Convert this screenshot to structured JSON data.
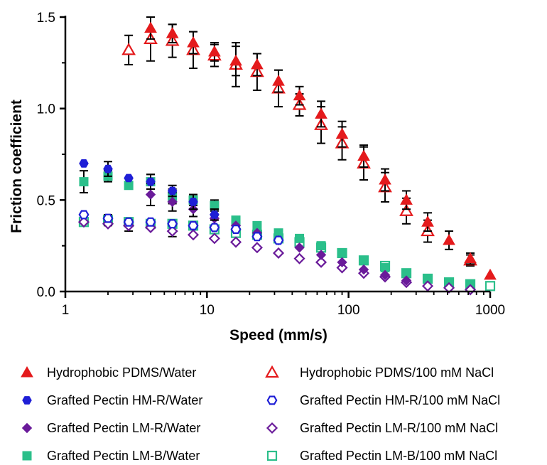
{
  "chart_data": {
    "type": "scatter",
    "xlabel": "Speed (mm/s)",
    "ylabel": "Friction coefficient",
    "xscale": "log",
    "xlim": [
      1,
      1000
    ],
    "ylim": [
      0,
      1.5
    ],
    "x_ticks": [
      "1",
      "10",
      "100",
      "1000"
    ],
    "y_ticks": [
      "0.0",
      "0.5",
      "1.0",
      "1.5"
    ],
    "grid": false,
    "legend_position": "bottom",
    "series": [
      {
        "name": "Hydrophobic PDMS/Water",
        "marker": "triangle",
        "filled": true,
        "color": "#e41a1c",
        "x": [
          4,
          5.7,
          8,
          11.3,
          16,
          22.6,
          32,
          45,
          64,
          90,
          128,
          181,
          256,
          362,
          512,
          724,
          1000
        ],
        "y": [
          1.44,
          1.41,
          1.36,
          1.31,
          1.26,
          1.24,
          1.15,
          1.07,
          0.97,
          0.86,
          0.74,
          0.61,
          0.5,
          0.38,
          0.28,
          0.18,
          0.09
        ],
        "err": [
          0.06,
          0.05,
          0.06,
          0.05,
          0.08,
          0.06,
          0.06,
          0.05,
          0.07,
          0.07,
          0.06,
          0.06,
          0.05,
          0.05,
          0.05,
          0.03,
          0
        ]
      },
      {
        "name": "Hydrophobic PDMS/100 mM NaCl",
        "marker": "triangle",
        "filled": false,
        "color": "#e41a1c",
        "x": [
          2.8,
          4,
          5.7,
          8,
          11.3,
          16,
          22.6,
          32,
          45,
          64,
          90,
          128,
          181,
          256,
          362,
          724
        ],
        "y": [
          1.32,
          1.38,
          1.37,
          1.32,
          1.29,
          1.24,
          1.2,
          1.11,
          1.02,
          0.91,
          0.81,
          0.7,
          0.57,
          0.44,
          0.33,
          0.17
        ],
        "err": [
          0.08,
          0.12,
          0.09,
          0.1,
          0.06,
          0.12,
          0.1,
          0.1,
          0.06,
          0.1,
          0.09,
          0.09,
          0.08,
          0.07,
          0.06,
          0.03
        ]
      },
      {
        "name": "Grafted Pectin HM-R/Water",
        "marker": "hexagon",
        "filled": true,
        "color": "#1f1fd6",
        "x": [
          1.35,
          2,
          2.8,
          4,
          5.7,
          8,
          11.3
        ],
        "y": [
          0.7,
          0.67,
          0.62,
          0.6,
          0.55,
          0.49,
          0.42
        ],
        "err": [
          0,
          0.04,
          0,
          0.04,
          0.03,
          0.04,
          0.03
        ]
      },
      {
        "name": "Grafted Pectin HM-R/100 mM NaCl",
        "marker": "hexagon",
        "filled": false,
        "color": "#1f1fd6",
        "x": [
          1.35,
          2,
          2.8,
          4,
          5.7,
          8,
          11.3,
          16,
          22.6,
          32
        ],
        "y": [
          0.42,
          0.4,
          0.38,
          0.38,
          0.37,
          0.36,
          0.35,
          0.34,
          0.3,
          0.28
        ],
        "err": [
          0,
          0,
          0,
          0,
          0,
          0,
          0,
          0,
          0,
          0
        ]
      },
      {
        "name": "Grafted Pectin LM-R/Water",
        "marker": "diamond",
        "filled": true,
        "color": "#6a1b9a",
        "x": [
          4,
          5.7,
          8,
          11.3,
          16,
          22.6,
          32,
          45,
          64,
          90,
          128,
          181,
          256
        ],
        "y": [
          0.53,
          0.49,
          0.45,
          0.4,
          0.36,
          0.32,
          0.28,
          0.24,
          0.2,
          0.16,
          0.12,
          0.09,
          0.06
        ],
        "err": [
          0.06,
          0.05,
          0.04,
          0.05,
          0,
          0,
          0,
          0,
          0,
          0,
          0,
          0,
          0
        ]
      },
      {
        "name": "Grafted Pectin LM-R/100 mM NaCl",
        "marker": "diamond",
        "filled": false,
        "color": "#6a1b9a",
        "x": [
          1.35,
          2,
          2.8,
          4,
          5.7,
          8,
          11.3,
          16,
          22.6,
          32,
          45,
          64,
          90,
          128,
          181,
          256,
          362,
          512,
          724
        ],
        "y": [
          0.38,
          0.37,
          0.36,
          0.35,
          0.33,
          0.31,
          0.29,
          0.27,
          0.24,
          0.21,
          0.18,
          0.16,
          0.13,
          0.1,
          0.08,
          0.05,
          0.03,
          0.02,
          0.01
        ],
        "err": [
          0,
          0,
          0.03,
          0,
          0.03,
          0,
          0,
          0,
          0,
          0,
          0,
          0,
          0,
          0,
          0,
          0,
          0,
          0,
          0
        ]
      },
      {
        "name": "Grafted Pectin LM-B/Water",
        "marker": "square",
        "filled": true,
        "color": "#2bbf8a",
        "x": [
          1.35,
          2,
          2.8,
          4,
          5.7,
          8,
          11.3,
          16,
          22.6,
          32,
          45,
          64,
          90,
          128,
          181,
          256,
          362,
          512,
          724
        ],
        "y": [
          0.6,
          0.63,
          0.58,
          0.6,
          0.52,
          0.5,
          0.47,
          0.39,
          0.36,
          0.32,
          0.29,
          0.25,
          0.21,
          0.17,
          0.13,
          0.1,
          0.07,
          0.05,
          0.04
        ],
        "err": [
          0.06,
          0.03,
          0,
          0.04,
          0.04,
          0.03,
          0.03,
          0,
          0,
          0,
          0,
          0,
          0,
          0,
          0,
          0,
          0,
          0,
          0
        ]
      },
      {
        "name": "Grafted Pectin LM-B/100 mM NaCl",
        "marker": "square",
        "filled": false,
        "color": "#2bbf8a",
        "x": [
          1.35,
          2,
          2.8,
          4,
          5.7,
          8,
          11.3,
          16,
          22.6,
          32,
          45,
          64,
          90,
          128,
          181,
          256,
          362,
          512,
          724,
          1000
        ],
        "y": [
          0.38,
          0.39,
          0.38,
          0.37,
          0.37,
          0.36,
          0.34,
          0.32,
          0.31,
          0.29,
          0.27,
          0.24,
          0.21,
          0.17,
          0.14,
          0.1,
          0.07,
          0.05,
          0.04,
          0.03
        ],
        "err": [
          0,
          0.03,
          0,
          0,
          0,
          0,
          0,
          0,
          0,
          0,
          0,
          0,
          0,
          0,
          0,
          0,
          0,
          0,
          0,
          0
        ]
      }
    ]
  }
}
